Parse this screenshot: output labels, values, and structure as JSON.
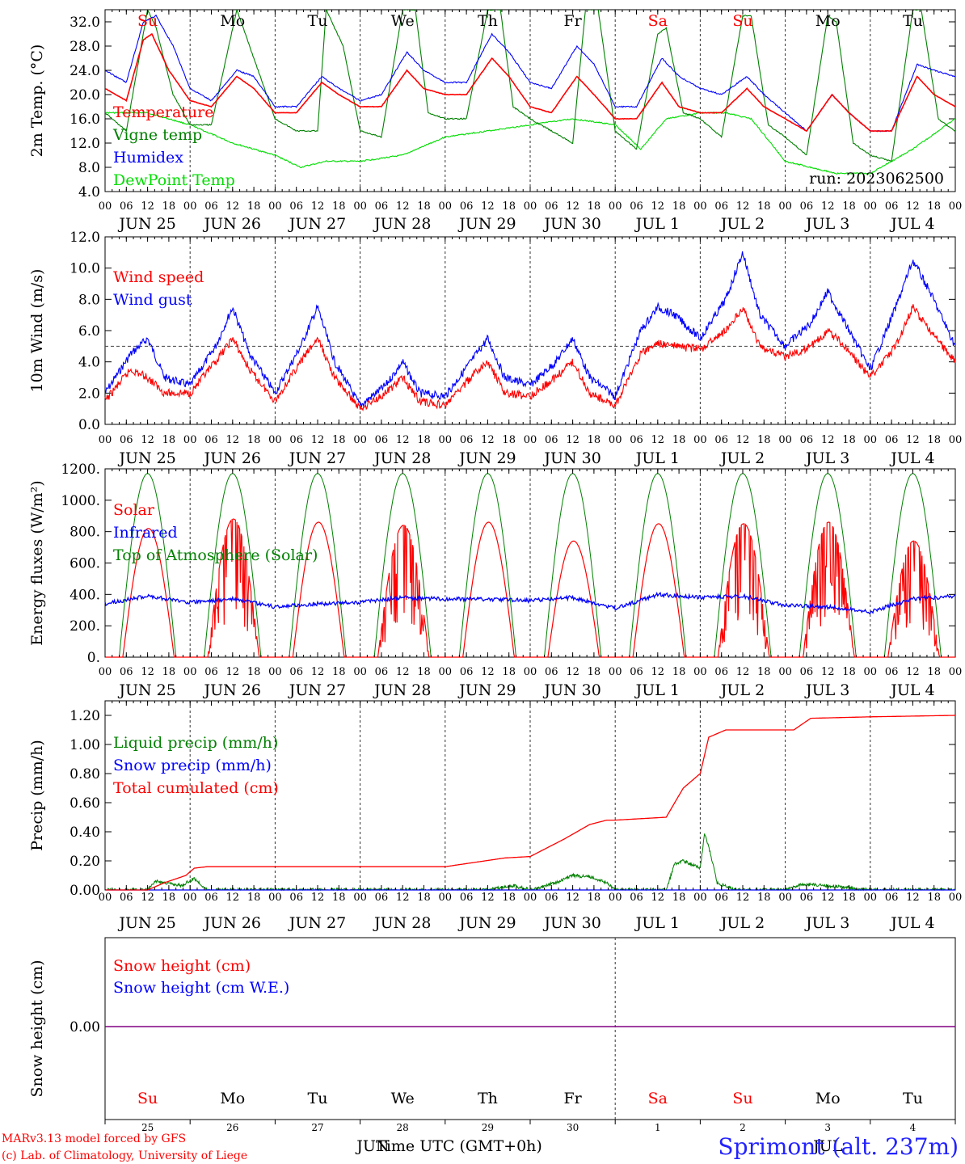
{
  "panels": [
    {
      "id": "temperature",
      "ylabel": "2m Temp. (°C)",
      "yticks": [
        "4.0",
        "8.0",
        "12.0",
        "16.0",
        "20.0",
        "24.0",
        "28.0",
        "32.0"
      ],
      "ylim": [
        4,
        34
      ],
      "legend": [
        {
          "label": "Temperature",
          "color": "#ff0000"
        },
        {
          "label": "Vigne temp",
          "color": "#008000"
        },
        {
          "label": "Humidex",
          "color": "#0000ff"
        },
        {
          "label": "DewPoint Temp",
          "color": "#00dd00"
        }
      ],
      "run_label": "run: 2023062500",
      "day_names": [
        {
          "label": "Su",
          "color": "#ff0000"
        },
        {
          "label": "Mo",
          "color": "#000000"
        },
        {
          "label": "Tu",
          "color": "#000000"
        },
        {
          "label": "We",
          "color": "#000000"
        },
        {
          "label": "Th",
          "color": "#000000"
        },
        {
          "label": "Fr",
          "color": "#000000"
        },
        {
          "label": "Sa",
          "color": "#ff0000"
        },
        {
          "label": "Su",
          "color": "#ff0000"
        },
        {
          "label": "Mo",
          "color": "#000000"
        },
        {
          "label": "Tu",
          "color": "#000000"
        }
      ],
      "dates": [
        "JUN 25",
        "JUN 26",
        "JUN 27",
        "JUN 28",
        "JUN 29",
        "JUN 30",
        "JUL  1",
        "JUL  2",
        "JUL  3",
        "JUL  4"
      ]
    },
    {
      "id": "wind",
      "ylabel": "10m Wind (m/s)",
      "yticks": [
        "0.0",
        "2.0",
        "4.0",
        "6.0",
        "8.0",
        "10.0",
        "12.0"
      ],
      "ylim": [
        0,
        12
      ],
      "legend": [
        {
          "label": "Wind speed",
          "color": "#ff0000"
        },
        {
          "label": "Wind gust",
          "color": "#0000ff"
        }
      ],
      "reference_line": 5,
      "dates": [
        "JUN 25",
        "JUN 26",
        "JUN 27",
        "JUN 28",
        "JUN 29",
        "JUN 30",
        "JUL  1",
        "JUL  2",
        "JUL  3",
        "JUL  4"
      ]
    },
    {
      "id": "energy",
      "ylabel": "Energy fluxes (W/m²)",
      "yticks": [
        "0.",
        "200.",
        "400.",
        "600.",
        "800.",
        "1000.",
        "1200."
      ],
      "ylim": [
        0,
        1200
      ],
      "legend": [
        {
          "label": "Solar",
          "color": "#ff0000"
        },
        {
          "label": "Infrared",
          "color": "#0000ff"
        },
        {
          "label": "Top of Atmosphere (Solar)",
          "color": "#008000"
        }
      ],
      "dates": [
        "JUN 25",
        "JUN 26",
        "JUN 27",
        "JUN 28",
        "JUN 29",
        "JUN 30",
        "JUL  1",
        "JUL  2",
        "JUL  3",
        "JUL  4"
      ]
    },
    {
      "id": "precip",
      "ylabel": "Precip (mm/h)",
      "yticks": [
        "0.00",
        "0.20",
        "0.40",
        "0.60",
        "0.80",
        "1.00",
        "1.20"
      ],
      "ylim": [
        0,
        1.3
      ],
      "legend": [
        {
          "label": "Liquid precip (mm/h)",
          "color": "#008000"
        },
        {
          "label": "Snow precip (mm/h)",
          "color": "#0000ff"
        },
        {
          "label": "Total cumulated (cm)",
          "color": "#ff0000"
        }
      ],
      "dates": [
        "JUN 25",
        "JUN 26",
        "JUN 27",
        "JUN 28",
        "JUN 29",
        "JUN 30",
        "JUL  1",
        "JUL  2",
        "JUL  3",
        "JUL  4"
      ]
    },
    {
      "id": "snow",
      "ylabel": "Snow height (cm)",
      "yticks": [
        "0.00"
      ],
      "legend": [
        {
          "label": "Snow height (cm)",
          "color": "#ff0000"
        },
        {
          "label": "Snow height (cm W.E.)",
          "color": "#0000ff"
        }
      ],
      "day_names": [
        {
          "label": "Su",
          "color": "#ff0000"
        },
        {
          "label": "Mo",
          "color": "#000000"
        },
        {
          "label": "Tu",
          "color": "#000000"
        },
        {
          "label": "We",
          "color": "#000000"
        },
        {
          "label": "Th",
          "color": "#000000"
        },
        {
          "label": "Fr",
          "color": "#000000"
        },
        {
          "label": "Sa",
          "color": "#ff0000"
        },
        {
          "label": "Su",
          "color": "#ff0000"
        },
        {
          "label": "Mo",
          "color": "#000000"
        },
        {
          "label": "Tu",
          "color": "#000000"
        }
      ],
      "day_numbers": [
        "25",
        "26",
        "27",
        "28",
        "29",
        "30",
        "1",
        "2",
        "3",
        "4"
      ],
      "month_labels": [
        "JUN",
        "JUL"
      ]
    }
  ],
  "hour_labels": [
    "00",
    "06",
    "12",
    "18"
  ],
  "final_hour_label": "00",
  "footer": {
    "xlabel": "Time UTC (GMT+0h)",
    "credit_line1": "MARv3.13 model forced by GFS",
    "credit_line2": "(c) Lab. of Climatology, University of Liege",
    "station": "Sprimont (alt. 237m)"
  },
  "chart_data": [
    {
      "type": "line",
      "title": "",
      "ylabel": "2m Temp. (°C)",
      "x_unit": "days from 2023-06-25 00 UTC",
      "ylim": [
        4,
        34
      ],
      "series": [
        {
          "name": "Temperature",
          "color": "#ff0000",
          "x": [
            0,
            0.25,
            0.45,
            0.55,
            0.75,
            1,
            1.25,
            1.55,
            1.75,
            2,
            2.25,
            2.55,
            2.75,
            3,
            3.25,
            3.55,
            3.75,
            4,
            4.25,
            4.55,
            4.75,
            5,
            5.25,
            5.55,
            5.75,
            6,
            6.25,
            6.55,
            6.75,
            7,
            7.25,
            7.55,
            7.75,
            8,
            8.25,
            8.55,
            8.75,
            9,
            9.25,
            9.55,
            9.75,
            10
          ],
          "y": [
            21,
            19,
            29,
            30,
            24,
            19,
            18,
            23,
            21,
            17,
            17,
            22,
            20,
            18,
            18,
            24,
            21,
            20,
            20,
            26,
            23,
            18,
            17,
            23,
            20,
            16,
            16,
            22,
            18,
            17,
            17,
            21,
            18,
            16,
            14,
            20,
            17,
            14,
            14,
            23,
            20,
            18
          ]
        },
        {
          "name": "Vigne temp",
          "color": "#008000",
          "x": [
            0,
            0.25,
            0.5,
            0.6,
            0.8,
            1,
            1.25,
            1.55,
            1.75,
            2,
            2.25,
            2.5,
            2.6,
            2.8,
            3,
            3.25,
            3.5,
            3.65,
            3.8,
            4,
            4.25,
            4.5,
            4.65,
            4.8,
            5,
            5.25,
            5.5,
            5.65,
            5.8,
            6,
            6.25,
            6.5,
            6.6,
            6.8,
            7,
            7.25,
            7.5,
            7.6,
            7.8,
            8,
            8.25,
            8.5,
            8.6,
            8.8,
            9,
            9.25,
            9.5,
            9.6,
            9.8,
            10
          ],
          "y": [
            17,
            14,
            34,
            31,
            20,
            15,
            15,
            34,
            26,
            16,
            14,
            14,
            34,
            28,
            14,
            13,
            34,
            34,
            17,
            16,
            16,
            34,
            34,
            18,
            16,
            14,
            12,
            34,
            34,
            14,
            11,
            30,
            31,
            17,
            16,
            13,
            33,
            33,
            15,
            13,
            10,
            33,
            32,
            12,
            10,
            9,
            34,
            34,
            16,
            14
          ]
        },
        {
          "name": "Humidex",
          "color": "#0000ff",
          "x": [
            0,
            0.25,
            0.45,
            0.6,
            0.8,
            1,
            1.25,
            1.55,
            1.75,
            2,
            2.25,
            2.55,
            2.75,
            3,
            3.25,
            3.55,
            3.75,
            4,
            4.25,
            4.55,
            4.75,
            5,
            5.25,
            5.55,
            5.75,
            6,
            6.25,
            6.55,
            6.75,
            7,
            7.25,
            7.55,
            7.75,
            8,
            8.25,
            8.55,
            8.75,
            9,
            9.25,
            9.55,
            9.75,
            10
          ],
          "y": [
            24,
            22,
            32,
            33,
            28,
            21,
            19,
            24,
            23,
            18,
            18,
            23,
            21,
            19,
            20,
            27,
            24,
            22,
            22,
            30,
            27,
            22,
            21,
            28,
            25,
            18,
            18,
            26,
            23,
            21,
            20,
            23,
            20,
            17,
            14,
            20,
            17,
            14,
            14,
            25,
            24,
            23
          ]
        },
        {
          "name": "DewPoint Temp",
          "color": "#00dd00",
          "x": [
            0,
            0.5,
            1,
            1.5,
            2,
            2.3,
            2.6,
            3,
            3.5,
            4,
            4.5,
            5,
            5.5,
            6,
            6.3,
            6.6,
            7,
            7.3,
            7.6,
            8,
            8.3,
            8.6,
            9,
            9.5,
            10
          ],
          "y": [
            17,
            17,
            15,
            12,
            10,
            8,
            9,
            9,
            10,
            13,
            14,
            15,
            16,
            15,
            11,
            16,
            17,
            17,
            16,
            9,
            8,
            7,
            7,
            11,
            16
          ]
        }
      ]
    },
    {
      "type": "line",
      "title": "",
      "ylabel": "10m Wind (m/s)",
      "x_unit": "days from 2023-06-25 00 UTC",
      "ylim": [
        0,
        12
      ],
      "reference_y": 5,
      "series": [
        {
          "name": "Wind speed",
          "color": "#ff0000",
          "x": [
            0,
            0.3,
            0.5,
            0.7,
            1,
            1.3,
            1.5,
            1.7,
            2,
            2.3,
            2.5,
            2.7,
            3,
            3.3,
            3.5,
            3.7,
            4,
            4.3,
            4.5,
            4.7,
            5,
            5.3,
            5.5,
            5.7,
            6,
            6.3,
            6.5,
            6.7,
            7,
            7.3,
            7.5,
            7.7,
            8,
            8.3,
            8.5,
            8.7,
            9,
            9.3,
            9.5,
            9.7,
            10
          ],
          "y": [
            1.5,
            3.5,
            3,
            2,
            2,
            4,
            5.5,
            3.5,
            1.5,
            4,
            5.5,
            3,
            1,
            2,
            3,
            1.5,
            1.2,
            3,
            4,
            2,
            1.8,
            3,
            4,
            2,
            1.2,
            4.5,
            5.2,
            5,
            4.8,
            6,
            7.5,
            5,
            4.3,
            5,
            6,
            5,
            3,
            5,
            7.5,
            6,
            4
          ]
        },
        {
          "name": "Wind gust",
          "color": "#0000ff",
          "x": [
            0,
            0.3,
            0.5,
            0.7,
            1,
            1.3,
            1.5,
            1.7,
            2,
            2.3,
            2.5,
            2.7,
            3,
            3.3,
            3.5,
            3.7,
            4,
            4.3,
            4.5,
            4.7,
            5,
            5.3,
            5.5,
            5.7,
            6,
            6.3,
            6.5,
            6.7,
            7,
            7.3,
            7.5,
            7.7,
            8,
            8.3,
            8.5,
            8.7,
            9,
            9.3,
            9.5,
            9.7,
            10
          ],
          "y": [
            2,
            4.5,
            5.5,
            3,
            2.5,
            5,
            7.5,
            4.5,
            2,
            5,
            7.5,
            4,
            1.2,
            2.5,
            4,
            2,
            1.8,
            4,
            5.5,
            3,
            2.5,
            4,
            5.5,
            3,
            1.8,
            6,
            7.5,
            7,
            5.5,
            8,
            11,
            7,
            5,
            6.5,
            8.5,
            6.5,
            3.5,
            7.5,
            10.5,
            8.5,
            5
          ]
        }
      ]
    },
    {
      "type": "line",
      "title": "",
      "ylabel": "Energy fluxes (W/m²)",
      "x_unit": "days from 2023-06-25 00 UTC",
      "ylim": [
        0,
        1200
      ],
      "series": [
        {
          "name": "Solar",
          "color": "#ff0000",
          "day_peaks": [
            820,
            880,
            860,
            840,
            860,
            740,
            850,
            850,
            860,
            740
          ]
        },
        {
          "name": "Infrared",
          "color": "#0000ff",
          "x": [
            0,
            0.5,
            1,
            1.5,
            2,
            2.5,
            3,
            3.5,
            4,
            4.5,
            5,
            5.5,
            6,
            6.5,
            7,
            7.5,
            8,
            8.5,
            9,
            9.5,
            10
          ],
          "y": [
            340,
            390,
            350,
            370,
            320,
            340,
            350,
            380,
            370,
            370,
            360,
            380,
            310,
            400,
            380,
            390,
            330,
            320,
            290,
            370,
            390
          ]
        },
        {
          "name": "Top of Atmosphere (Solar)",
          "color": "#008000",
          "day_peaks": [
            1170,
            1170,
            1170,
            1170,
            1170,
            1170,
            1170,
            1170,
            1170,
            1170
          ]
        }
      ]
    },
    {
      "type": "line",
      "title": "",
      "ylabel": "Precip (mm/h)",
      "x_unit": "days from 2023-06-25 00 UTC",
      "ylim": [
        0,
        1.3
      ],
      "series": [
        {
          "name": "Liquid precip (mm/h)",
          "color": "#008000",
          "x": [
            0,
            0.5,
            0.6,
            0.9,
            1.05,
            1.2,
            4,
            4.5,
            4.8,
            5,
            5.3,
            5.5,
            5.7,
            5.9,
            6,
            6.6,
            6.7,
            6.8,
            7.0,
            7.05,
            7.1,
            7.2,
            7.4,
            8,
            8.2,
            8.5,
            9,
            10
          ],
          "y": [
            0,
            0,
            0.06,
            0.03,
            0.08,
            0,
            0,
            0,
            0.03,
            0,
            0.05,
            0.1,
            0.09,
            0.05,
            0,
            0,
            0.18,
            0.2,
            0.15,
            0.38,
            0.3,
            0.05,
            0,
            0,
            0.04,
            0.03,
            0,
            0
          ]
        },
        {
          "name": "Snow precip (mm/h)",
          "color": "#0000ff",
          "x": [
            0,
            10
          ],
          "y": [
            0,
            0
          ]
        },
        {
          "name": "Total cumulated (cm)",
          "color": "#ff0000",
          "x": [
            0,
            0.5,
            0.7,
            0.95,
            1.05,
            1.2,
            2,
            3,
            4,
            4.7,
            5,
            5.4,
            5.7,
            5.9,
            6,
            6.6,
            6.8,
            7,
            7.1,
            7.3,
            8.1,
            8.3,
            9,
            10
          ],
          "y": [
            0,
            0,
            0.05,
            0.1,
            0.15,
            0.16,
            0.16,
            0.16,
            0.16,
            0.22,
            0.23,
            0.35,
            0.45,
            0.48,
            0.48,
            0.5,
            0.7,
            0.8,
            1.05,
            1.1,
            1.1,
            1.18,
            1.19,
            1.2
          ]
        }
      ]
    },
    {
      "type": "line",
      "title": "",
      "ylabel": "Snow height (cm)",
      "x_unit": "days from 2023-06-25 00 UTC",
      "series": [
        {
          "name": "Snow height (cm)",
          "color": "#ff0000",
          "x": [
            0,
            10
          ],
          "y": [
            0,
            0
          ]
        },
        {
          "name": "Snow height (cm W.E.)",
          "color": "#0000ff",
          "x": [
            0,
            10
          ],
          "y": [
            0,
            0
          ]
        }
      ]
    }
  ]
}
